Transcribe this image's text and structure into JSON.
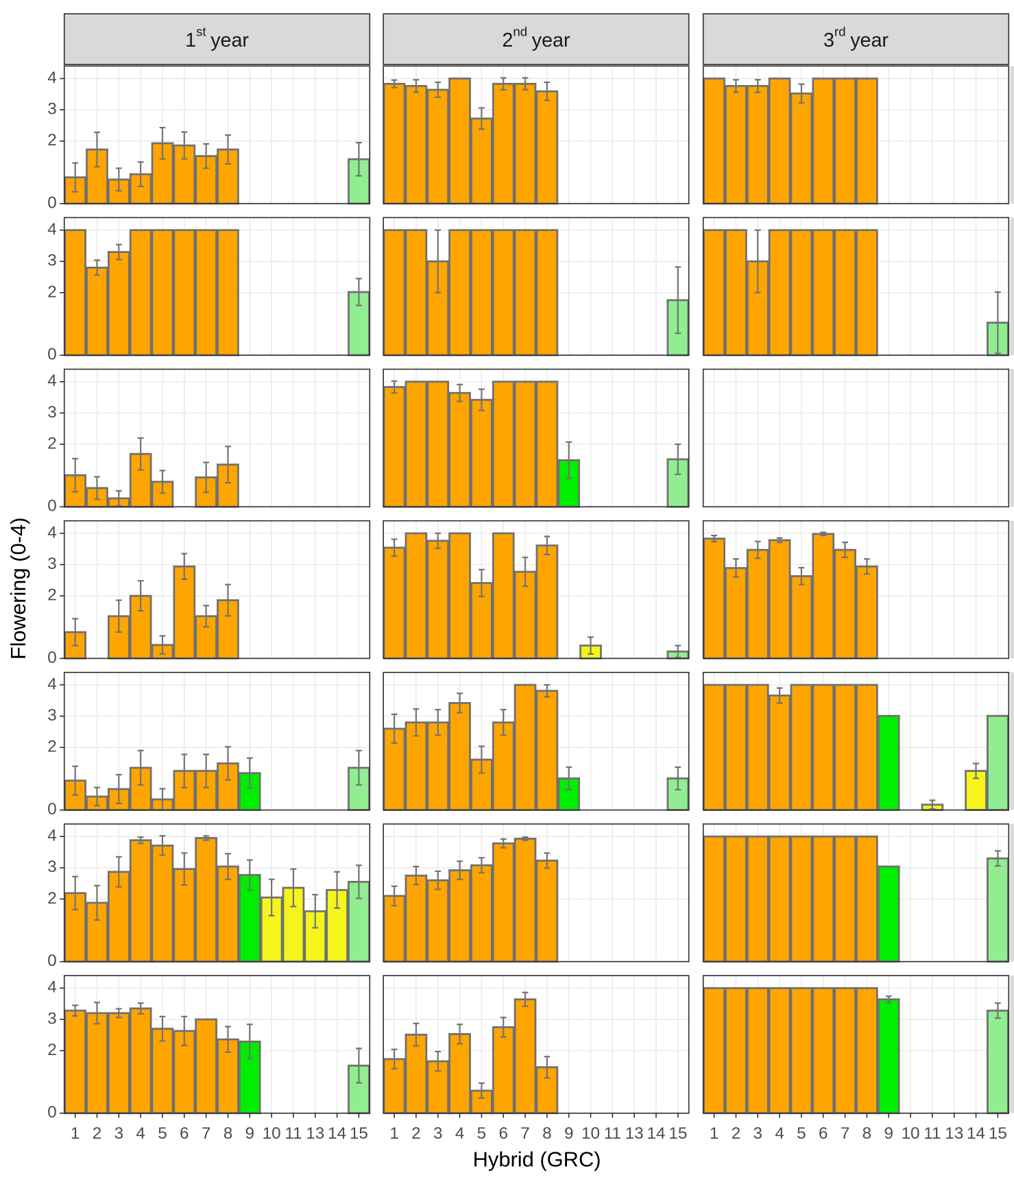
{
  "chart_data": {
    "type": "bar",
    "xlabel": "Hybrid (GRC)",
    "ylabel": "Flowering (0-4)",
    "columns": [
      {
        "number": "1",
        "suffix": "st",
        "word": "year"
      },
      {
        "number": "2",
        "suffix": "nd",
        "word": "year"
      },
      {
        "number": "3",
        "suffix": "rd",
        "word": "year"
      }
    ],
    "categories": [
      "1",
      "2",
      "3",
      "4",
      "5",
      "6",
      "7",
      "8",
      "9",
      "10",
      "11",
      "13",
      "14",
      "15"
    ],
    "colors": [
      "#ffa500",
      "#ffa500",
      "#ffa500",
      "#ffa500",
      "#ffa500",
      "#ffa500",
      "#ffa500",
      "#ffa500",
      "#00ee00",
      "#f5f51c",
      "#f5f51c",
      "#f5f51c",
      "#f5f51c",
      "#90ee90"
    ],
    "error_color": "#737373",
    "ylim": [
      0,
      4.4
    ],
    "yticks": [
      0,
      2,
      3,
      4
    ],
    "grid": true,
    "panels": [
      [
        {
          "values": [
            0.84,
            1.73,
            0.77,
            0.94,
            1.93,
            1.86,
            1.52,
            1.73,
            null,
            null,
            null,
            null,
            null,
            1.42
          ],
          "errors": [
            0.46,
            0.55,
            0.36,
            0.39,
            0.5,
            0.43,
            0.39,
            0.46,
            null,
            null,
            null,
            null,
            null,
            0.53
          ]
        },
        {
          "values": [
            3.83,
            3.76,
            3.64,
            4,
            2.72,
            3.83,
            3.83,
            3.59,
            null,
            null,
            null,
            null,
            null,
            null
          ],
          "errors": [
            0.12,
            0.2,
            0.24,
            null,
            0.34,
            0.19,
            0.19,
            0.29,
            null,
            null,
            null,
            null,
            null,
            null
          ]
        },
        {
          "values": [
            4,
            3.76,
            3.76,
            4,
            3.52,
            4,
            4,
            4,
            null,
            null,
            null,
            null,
            null,
            null
          ],
          "errors": [
            null,
            0.2,
            0.2,
            null,
            0.3,
            null,
            null,
            null,
            null,
            null,
            null,
            null,
            null,
            null
          ]
        }
      ],
      [
        {
          "values": [
            4,
            2.8,
            3.3,
            4,
            4,
            4,
            4,
            4,
            null,
            null,
            null,
            null,
            null,
            2.02
          ],
          "errors": [
            null,
            0.24,
            0.24,
            null,
            null,
            null,
            null,
            null,
            null,
            null,
            null,
            null,
            null,
            0.43
          ]
        },
        {
          "values": [
            4,
            4,
            3,
            4,
            4,
            4,
            4,
            4,
            null,
            null,
            null,
            null,
            null,
            1.76
          ],
          "errors": [
            null,
            null,
            1,
            null,
            null,
            null,
            null,
            null,
            null,
            null,
            null,
            null,
            null,
            1.06
          ]
        },
        {
          "values": [
            4,
            4,
            3,
            4,
            4,
            4,
            4,
            4,
            null,
            null,
            null,
            null,
            null,
            1.04
          ],
          "errors": [
            null,
            null,
            1,
            null,
            null,
            null,
            null,
            null,
            null,
            null,
            null,
            null,
            null,
            0.98
          ]
        }
      ],
      [
        {
          "values": [
            1.01,
            0.6,
            0.27,
            1.69,
            0.8,
            null,
            0.94,
            1.35,
            null,
            null,
            null,
            null,
            null,
            null
          ],
          "errors": [
            0.53,
            0.36,
            0.24,
            0.51,
            0.36,
            null,
            0.48,
            0.58,
            null,
            null,
            null,
            null,
            null,
            null
          ]
        },
        {
          "values": [
            3.83,
            4,
            4,
            3.64,
            3.42,
            4,
            4,
            4,
            1.49,
            null,
            null,
            null,
            null,
            1.52
          ],
          "errors": [
            0.19,
            null,
            null,
            0.27,
            0.34,
            null,
            null,
            null,
            0.58,
            null,
            null,
            null,
            null,
            0.48
          ]
        },
        {
          "values": [
            null,
            null,
            null,
            null,
            null,
            null,
            null,
            null,
            null,
            null,
            null,
            null,
            null,
            null
          ],
          "errors": [
            null,
            null,
            null,
            null,
            null,
            null,
            null,
            null,
            null,
            null,
            null,
            null,
            null,
            null
          ]
        }
      ],
      [
        {
          "values": [
            0.84,
            null,
            1.35,
            2.0,
            0.43,
            2.94,
            1.35,
            1.86,
            null,
            null,
            null,
            null,
            null,
            null
          ],
          "errors": [
            0.43,
            null,
            0.51,
            0.48,
            0.29,
            0.41,
            0.34,
            0.5,
            null,
            null,
            null,
            null,
            null,
            null
          ]
        },
        {
          "values": [
            3.54,
            4,
            3.76,
            4,
            2.41,
            4,
            2.77,
            3.61,
            null,
            0.41,
            null,
            null,
            null,
            0.22
          ],
          "errors": [
            0.27,
            null,
            0.24,
            null,
            0.43,
            null,
            0.46,
            0.29,
            null,
            0.27,
            null,
            null,
            null,
            0.19
          ]
        },
        {
          "values": [
            3.83,
            2.89,
            3.47,
            3.78,
            2.63,
            3.98,
            3.47,
            2.94,
            null,
            null,
            null,
            null,
            null,
            null
          ],
          "errors": [
            0.1,
            0.29,
            0.27,
            0.07,
            0.27,
            0.05,
            0.24,
            0.24,
            null,
            null,
            null,
            null,
            null,
            null
          ]
        }
      ],
      [
        {
          "values": [
            0.94,
            0.43,
            0.67,
            1.35,
            0.34,
            1.25,
            1.25,
            1.49,
            1.18,
            null,
            null,
            null,
            null,
            1.35
          ],
          "errors": [
            0.46,
            0.29,
            0.46,
            0.55,
            0.34,
            0.53,
            0.53,
            0.53,
            0.48,
            null,
            null,
            null,
            null,
            0.55
          ]
        },
        {
          "values": [
            2.6,
            2.8,
            2.8,
            3.42,
            1.61,
            2.8,
            4,
            3.81,
            1.01,
            null,
            null,
            null,
            null,
            1.01
          ],
          "errors": [
            0.46,
            0.43,
            0.41,
            0.31,
            0.43,
            0.41,
            null,
            0.19,
            0.36,
            null,
            null,
            null,
            null,
            0.36
          ]
        },
        {
          "values": [
            4,
            4,
            4,
            3.66,
            4,
            4,
            4,
            4,
            3.01,
            null,
            0.17,
            null,
            1.25,
            3.01
          ],
          "errors": [
            null,
            null,
            null,
            0.24,
            null,
            null,
            null,
            null,
            null,
            null,
            0.14,
            null,
            0.24,
            null
          ]
        }
      ],
      [
        {
          "values": [
            2.19,
            1.88,
            2.87,
            3.88,
            3.71,
            2.96,
            3.95,
            3.04,
            2.77,
            2.05,
            2.36,
            1.61,
            2.29,
            2.55
          ],
          "errors": [
            0.53,
            0.55,
            0.48,
            0.1,
            0.31,
            0.51,
            0.07,
            0.41,
            0.48,
            0.58,
            0.6,
            0.53,
            0.58,
            0.53
          ]
        },
        {
          "values": [
            2.1,
            2.75,
            2.6,
            2.92,
            3.08,
            3.78,
            3.93,
            3.23,
            null,
            null,
            null,
            null,
            null,
            null
          ],
          "errors": [
            0.31,
            0.29,
            0.29,
            0.29,
            0.24,
            0.14,
            0.05,
            0.24,
            null,
            null,
            null,
            null,
            null,
            null
          ]
        },
        {
          "values": [
            4,
            4,
            4,
            4,
            4,
            4,
            4,
            4,
            3.04,
            null,
            null,
            null,
            null,
            3.3
          ],
          "errors": [
            null,
            null,
            null,
            null,
            null,
            null,
            null,
            null,
            null,
            null,
            null,
            null,
            null,
            0.24
          ]
        }
      ],
      [
        {
          "values": [
            3.28,
            3.2,
            3.2,
            3.35,
            2.7,
            2.63,
            3.0,
            2.36,
            2.29,
            null,
            null,
            null,
            null,
            1.52
          ],
          "errors": [
            0.17,
            0.34,
            0.14,
            0.17,
            0.39,
            0.46,
            null,
            0.41,
            0.55,
            null,
            null,
            null,
            null,
            0.55
          ]
        },
        {
          "values": [
            1.73,
            2.51,
            1.66,
            2.53,
            0.72,
            2.75,
            3.64,
            1.47,
            null,
            null,
            null,
            null,
            null,
            null
          ],
          "errors": [
            0.31,
            0.36,
            0.31,
            0.31,
            0.24,
            0.31,
            0.22,
            0.34,
            null,
            null,
            null,
            null,
            null,
            null
          ]
        },
        {
          "values": [
            4,
            4,
            4,
            4,
            4,
            4,
            4,
            4,
            3.64,
            null,
            null,
            null,
            null,
            3.28
          ],
          "errors": [
            null,
            null,
            null,
            null,
            null,
            null,
            null,
            null,
            0.1,
            null,
            null,
            null,
            null,
            0.24
          ]
        }
      ]
    ]
  }
}
